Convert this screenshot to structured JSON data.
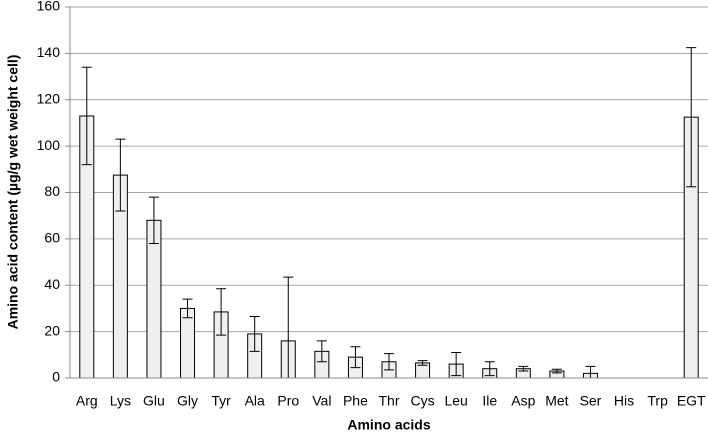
{
  "chart_data": {
    "type": "bar",
    "x_label": "Amino acids",
    "y_label": "Amino acid content (µg/g wet weight cell)",
    "categories": [
      "Arg",
      "Lys",
      "Glu",
      "Gly",
      "Tyr",
      "Ala",
      "Pro",
      "Val",
      "Phe",
      "Thr",
      "Cys",
      "Leu",
      "Ile",
      "Asp",
      "Met",
      "Ser",
      "His",
      "Trp",
      "EGT"
    ],
    "values": [
      113,
      87.5,
      68,
      30,
      28.5,
      19,
      16,
      11.5,
      9,
      7,
      6.5,
      6,
      4,
      4,
      3,
      2,
      0,
      0,
      112.5
    ],
    "errors": [
      21,
      15.5,
      10,
      4,
      10,
      7.5,
      27.5,
      4.5,
      4.5,
      3.5,
      1,
      5,
      3,
      1,
      0.8,
      3,
      0,
      0,
      30
    ],
    "color": "#efefef",
    "ylim": [
      0,
      160
    ],
    "yticks": [
      0,
      20,
      40,
      60,
      80,
      100,
      120,
      140,
      160
    ],
    "grid": true
  }
}
